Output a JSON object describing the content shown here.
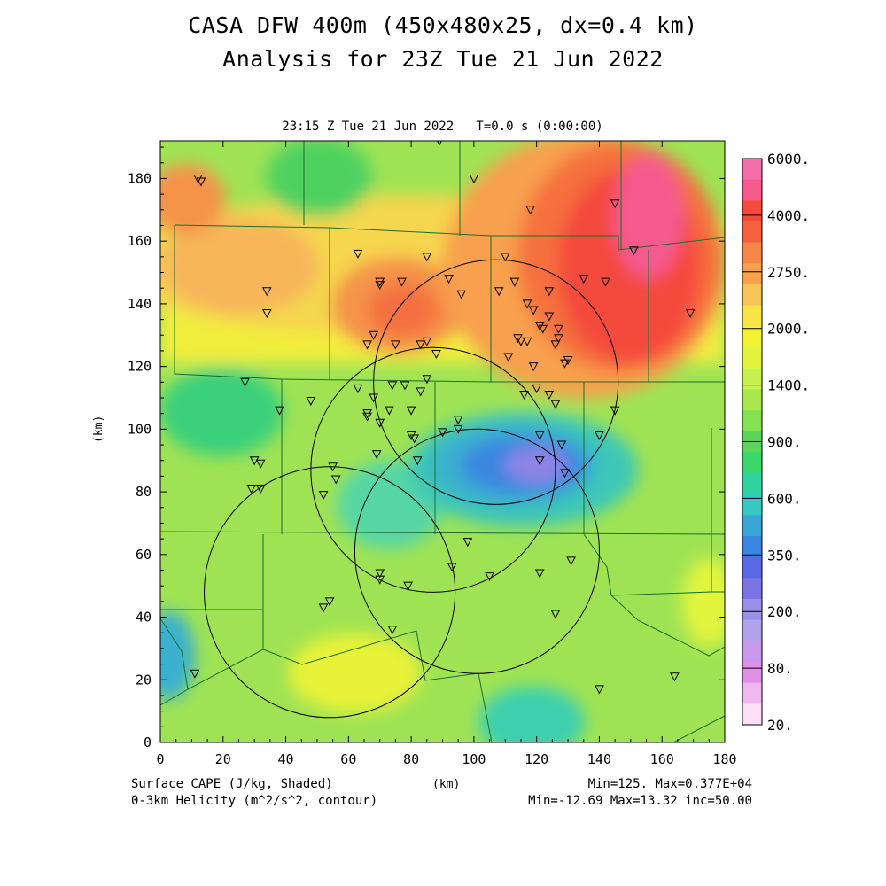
{
  "header": {
    "title_line1": "CASA DFW 400m (450x480x25, dx=0.4 km)",
    "title_line2": "Analysis for 23Z Tue 21 Jun 2022",
    "subtitle": "23:15 Z Tue 21 Jun 2022   T=0.0 s (0:00:00)"
  },
  "footer": {
    "left_line1": "Surface CAPE (J/kg, Shaded)",
    "left_line2": "0-3km Helicity (m^2/s^2, contour)",
    "x_unit": "(km)",
    "right_line1": "Min=125. Max=0.377E+04",
    "right_line2": "Min=-12.69 Max=13.32 inc=50.00"
  },
  "chart_data": {
    "type": "heatmap",
    "title": "CASA DFW 400m (450x480x25, dx=0.4 km) Analysis for 23Z Tue 21 Jun 2022",
    "xlabel": "",
    "ylabel": "(km)",
    "xlim": [
      0,
      180
    ],
    "ylim": [
      0,
      192
    ],
    "x_ticks": [
      0,
      20,
      40,
      60,
      80,
      100,
      120,
      140,
      160,
      180
    ],
    "y_ticks": [
      0,
      20,
      40,
      60,
      80,
      100,
      120,
      140,
      160,
      180
    ],
    "colorbar": {
      "labels": [
        "6000.",
        "4000.",
        "2750.",
        "2000.",
        "1400.",
        "900.",
        "600.",
        "350.",
        "200.",
        "80.",
        "20."
      ],
      "colors": [
        "#f56fa8",
        "#f55a8f",
        "#f44a3c",
        "#f4613e",
        "#f5874a",
        "#f7a04e",
        "#f7c459",
        "#f9e448",
        "#f2f232",
        "#e2f53c",
        "#c8f04e",
        "#a8e84e",
        "#86e252",
        "#5cd45a",
        "#3ad86a",
        "#2ed3a0",
        "#38c8c4",
        "#3aa6d4",
        "#3a86e0",
        "#5a6ae4",
        "#7a74e4",
        "#9a90e8",
        "#b2a2ec",
        "#c898ec",
        "#e090e6",
        "#f0b8f0",
        "#fde0f6"
      ]
    },
    "cape_field_summary": {
      "min": 125,
      "max": 3770
    },
    "helicity_contour_summary": {
      "min": -12.69,
      "max": 13.32,
      "inc": 50.0
    },
    "radar_range_rings": [
      {
        "x": 107,
        "y": 115,
        "r": 39
      },
      {
        "x": 87,
        "y": 87,
        "r": 39
      },
      {
        "x": 101,
        "y": 61,
        "r": 39
      },
      {
        "x": 54,
        "y": 48,
        "r": 40
      }
    ],
    "stations": [
      [
        12,
        180
      ],
      [
        13,
        179
      ],
      [
        100,
        180
      ],
      [
        89,
        192
      ],
      [
        118,
        170
      ],
      [
        145,
        172
      ],
      [
        151,
        157
      ],
      [
        169,
        137
      ],
      [
        34,
        144
      ],
      [
        34,
        137
      ],
      [
        63,
        156
      ],
      [
        70,
        147
      ],
      [
        70,
        146
      ],
      [
        77,
        147
      ],
      [
        85,
        155
      ],
      [
        92,
        148
      ],
      [
        96,
        143
      ],
      [
        110,
        155
      ],
      [
        108,
        144
      ],
      [
        113,
        147
      ],
      [
        117,
        140
      ],
      [
        124,
        144
      ],
      [
        119,
        138
      ],
      [
        121,
        133
      ],
      [
        122,
        132
      ],
      [
        124,
        136
      ],
      [
        127,
        132
      ],
      [
        127,
        129
      ],
      [
        126,
        127
      ],
      [
        114,
        129
      ],
      [
        115,
        128
      ],
      [
        117,
        128
      ],
      [
        111,
        123
      ],
      [
        119,
        120
      ],
      [
        129,
        121
      ],
      [
        130,
        122
      ],
      [
        135,
        148
      ],
      [
        142,
        147
      ],
      [
        66,
        127
      ],
      [
        68,
        130
      ],
      [
        75,
        127
      ],
      [
        83,
        127
      ],
      [
        85,
        128
      ],
      [
        88,
        124
      ],
      [
        63,
        113
      ],
      [
        74,
        114
      ],
      [
        78,
        114
      ],
      [
        83,
        112
      ],
      [
        85,
        116
      ],
      [
        68,
        110
      ],
      [
        66,
        105
      ],
      [
        66,
        104
      ],
      [
        70,
        102
      ],
      [
        73,
        106
      ],
      [
        80,
        106
      ],
      [
        95,
        103
      ],
      [
        95,
        100
      ],
      [
        90,
        99
      ],
      [
        80,
        98
      ],
      [
        81,
        97
      ],
      [
        116,
        111
      ],
      [
        120,
        113
      ],
      [
        124,
        111
      ],
      [
        126,
        108
      ],
      [
        145,
        106
      ],
      [
        140,
        98
      ],
      [
        121,
        98
      ],
      [
        121,
        90
      ],
      [
        128,
        95
      ],
      [
        129,
        86
      ],
      [
        38,
        106
      ],
      [
        48,
        109
      ],
      [
        27,
        115
      ],
      [
        30,
        90
      ],
      [
        32,
        89
      ],
      [
        29,
        81
      ],
      [
        32,
        81
      ],
      [
        55,
        88
      ],
      [
        56,
        84
      ],
      [
        52,
        79
      ],
      [
        69,
        92
      ],
      [
        82,
        90
      ],
      [
        98,
        64
      ],
      [
        93,
        56
      ],
      [
        105,
        53
      ],
      [
        121,
        54
      ],
      [
        131,
        58
      ],
      [
        126,
        41
      ],
      [
        70,
        54
      ],
      [
        70,
        52
      ],
      [
        79,
        50
      ],
      [
        52,
        43
      ],
      [
        54,
        45
      ],
      [
        74,
        36
      ],
      [
        11,
        22
      ],
      [
        140,
        17
      ],
      [
        164,
        21
      ]
    ]
  }
}
